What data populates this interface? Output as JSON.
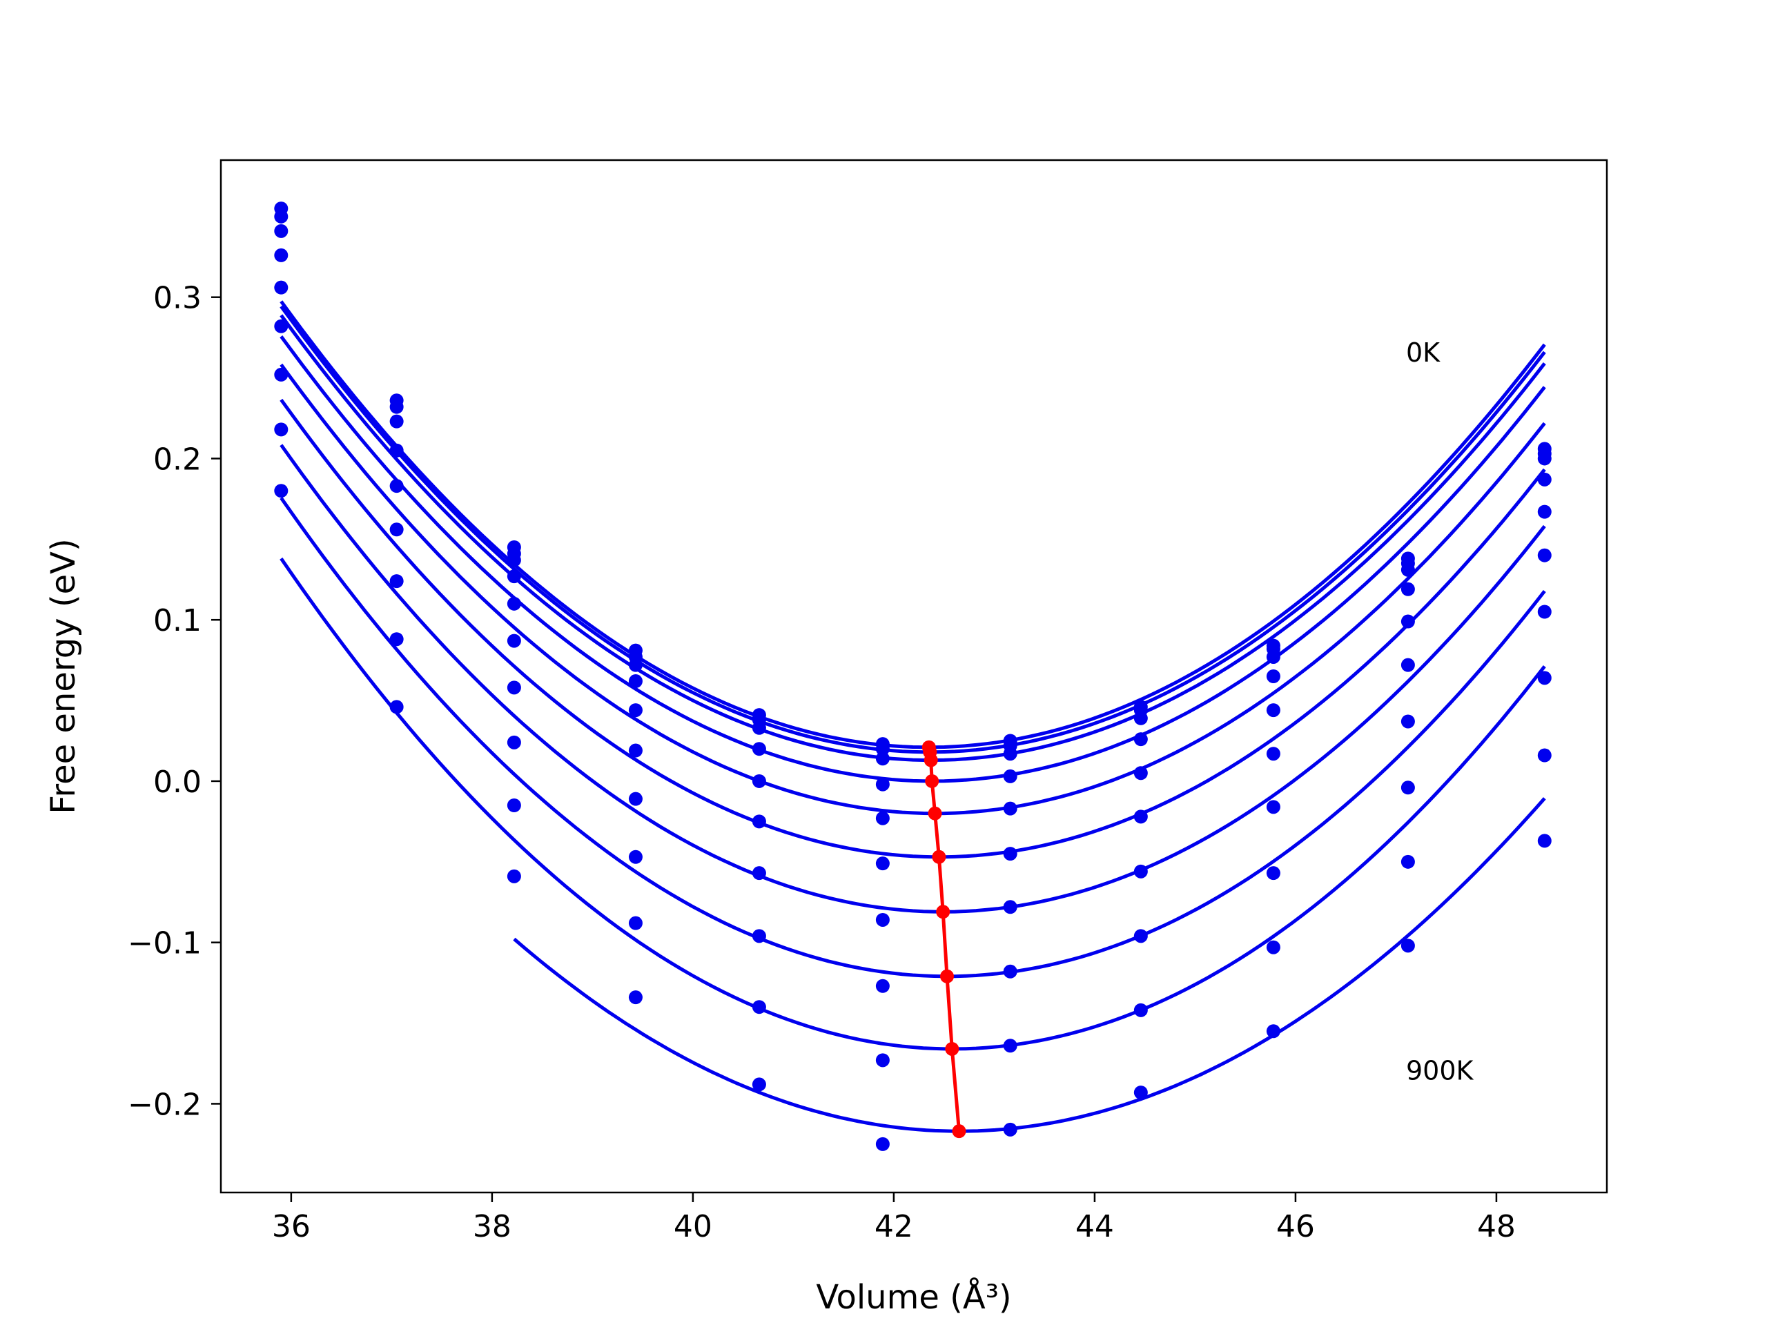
{
  "chart_data": {
    "type": "line",
    "title": "",
    "xlabel": "Volume (Å³)",
    "ylabel": "Free energy (eV)",
    "xlim": [
      35.3,
      49.1
    ],
    "ylim": [
      -0.255,
      0.385
    ],
    "xticks": [
      36,
      38,
      40,
      42,
      44,
      46,
      48
    ],
    "xtick_labels": [
      "36",
      "38",
      "40",
      "42",
      "44",
      "46",
      "48"
    ],
    "yticks": [
      -0.2,
      -0.1,
      0.0,
      0.1,
      0.2,
      0.3
    ],
    "ytick_labels": [
      "−0.2",
      "−0.1",
      "0.0",
      "0.1",
      "0.2",
      "0.3"
    ],
    "grid": false,
    "annotations": [
      {
        "text": "0K",
        "x": 47.1,
        "y": 0.26
      },
      {
        "text": "900K",
        "x": 47.1,
        "y": -0.185
      }
    ],
    "series_color": "#0000ee",
    "min_color": "#ff0000",
    "x": [
      35.9,
      37.05,
      38.22,
      39.43,
      40.66,
      41.89,
      43.16,
      44.46,
      45.78,
      47.12,
      48.48
    ],
    "series": [
      {
        "values": [
          0.355,
          0.236,
          0.145,
          0.081,
          0.041,
          0.023,
          0.025,
          0.046,
          0.084,
          0.138,
          0.206
        ],
        "fit_min": [
          42.35,
          0.021
        ]
      },
      {
        "values": [
          0.35,
          0.232,
          0.141,
          0.077,
          0.038,
          0.02,
          0.022,
          0.044,
          0.082,
          0.135,
          0.203
        ],
        "fit_min": [
          42.36,
          0.018
        ]
      },
      {
        "values": [
          0.341,
          0.223,
          0.137,
          0.072,
          0.033,
          0.014,
          0.017,
          0.039,
          0.077,
          0.131,
          0.2
        ],
        "fit_min": [
          42.37,
          0.013
        ]
      },
      {
        "values": [
          0.326,
          0.205,
          0.127,
          0.062,
          0.02,
          -0.002,
          0.003,
          0.026,
          0.065,
          0.119,
          0.187
        ],
        "fit_min": [
          42.38,
          0.0
        ]
      },
      {
        "values": [
          0.306,
          0.183,
          0.11,
          0.044,
          0.0,
          -0.023,
          -0.017,
          0.005,
          0.044,
          0.099,
          0.167
        ],
        "fit_min": [
          42.41,
          -0.02
        ]
      },
      {
        "values": [
          0.282,
          0.156,
          0.087,
          0.019,
          -0.025,
          -0.051,
          -0.045,
          -0.022,
          0.017,
          0.072,
          0.14
        ],
        "fit_min": [
          42.45,
          -0.047
        ]
      },
      {
        "values": [
          0.252,
          0.124,
          0.058,
          -0.011,
          -0.057,
          -0.086,
          -0.078,
          -0.056,
          -0.016,
          0.037,
          0.105
        ],
        "fit_min": [
          42.49,
          -0.081
        ]
      },
      {
        "values": [
          0.218,
          0.088,
          0.024,
          -0.047,
          -0.096,
          -0.127,
          -0.118,
          -0.096,
          -0.057,
          -0.004,
          0.064
        ],
        "fit_min": [
          42.53,
          -0.121
        ]
      },
      {
        "values": [
          0.18,
          0.046,
          -0.015,
          -0.088,
          -0.14,
          -0.173,
          -0.164,
          -0.142,
          -0.103,
          -0.05,
          0.016
        ],
        "fit_min": [
          42.58,
          -0.166
        ]
      },
      {
        "values": [
          null,
          null,
          -0.059,
          -0.134,
          -0.188,
          -0.225,
          -0.216,
          -0.193,
          -0.155,
          -0.102,
          -0.037
        ],
        "fit_min": [
          42.65,
          -0.217
        ]
      }
    ]
  }
}
